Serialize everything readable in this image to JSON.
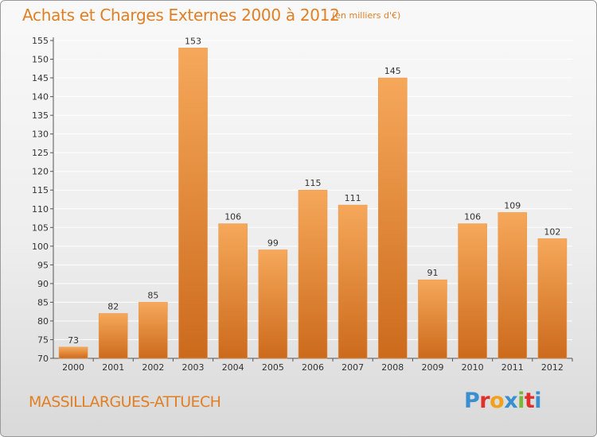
{
  "title": "Achats et Charges Externes 2000 à 2012",
  "unit": "(en milliers d'€)",
  "place": "MASSILLARGUES-ATTUECH",
  "logo": {
    "text": "Proxiti",
    "colors": [
      "#3a8fd0",
      "#e0302a",
      "#f2a21a",
      "#3a8fd0",
      "#7bb53a",
      "#e0302a",
      "#3a8fd0"
    ]
  },
  "colors": {
    "accent": "#e07f24",
    "bar_light": "#f6a85a",
    "bar_dark": "#cc6a1c",
    "grid": "#ffffff"
  },
  "chart_data": {
    "type": "bar",
    "title": "Achats et Charges Externes 2000 à 2012",
    "categories": [
      "2000",
      "2001",
      "2002",
      "2003",
      "2004",
      "2005",
      "2006",
      "2007",
      "2008",
      "2009",
      "2010",
      "2011",
      "2012"
    ],
    "values": [
      73,
      82,
      85,
      153,
      106,
      99,
      115,
      111,
      145,
      91,
      106,
      109,
      102
    ],
    "ylim": [
      70,
      155
    ],
    "yticks": [
      70,
      75,
      80,
      85,
      90,
      95,
      100,
      105,
      110,
      115,
      120,
      125,
      130,
      135,
      140,
      145,
      150,
      155
    ],
    "grid": true,
    "xlabel": "",
    "ylabel": ""
  }
}
